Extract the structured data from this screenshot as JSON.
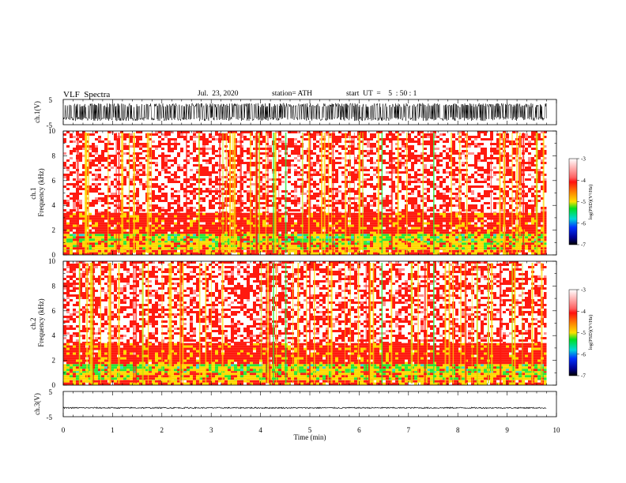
{
  "header": {
    "title": "VLF  Spectra",
    "date": "Jul.  23, 2020",
    "station": "station= ATH",
    "start": "start  UT  =    5  : 50 : 1"
  },
  "chart_data": [
    {
      "type": "line",
      "name": "ch1-waveform",
      "ylabel": "ch.1(V)",
      "ylim": [
        -5,
        5
      ],
      "yticks": [
        "5",
        "-5"
      ],
      "x_range_min": [
        0,
        9.8
      ],
      "amplitude_range_V": [
        -3.5,
        3.5
      ]
    },
    {
      "type": "heatmap",
      "name": "ch1-spectrogram",
      "ylabel": "ch.1\nFrequency  (kHz)",
      "ylim": [
        0,
        10
      ],
      "yticks": [
        "0",
        "2",
        "4",
        "6",
        "8",
        "10"
      ],
      "x_range_min": [
        0,
        9.8
      ],
      "bands_kHz": [
        {
          "from": 0,
          "to": 0.4,
          "level": "yellow-red"
        },
        {
          "from": 0.4,
          "to": 1.0,
          "level": "yellow"
        },
        {
          "from": 1.0,
          "to": 1.7,
          "level": "green-yellow"
        },
        {
          "from": 1.7,
          "to": 3.4,
          "level": "red"
        },
        {
          "from": 3.4,
          "to": 10,
          "level": "red-white"
        }
      ]
    },
    {
      "type": "heatmap",
      "name": "ch2-spectrogram",
      "ylabel": "ch.2\nFrequency  (kHz)",
      "ylim": [
        0,
        10
      ],
      "yticks": [
        "0",
        "2",
        "4",
        "6",
        "8",
        "10"
      ],
      "x_range_min": [
        0,
        9.8
      ],
      "bands_kHz": [
        {
          "from": 0,
          "to": 0.4,
          "level": "yellow-red"
        },
        {
          "from": 0.4,
          "to": 1.0,
          "level": "yellow"
        },
        {
          "from": 1.0,
          "to": 1.7,
          "level": "green-yellow"
        },
        {
          "from": 1.7,
          "to": 3.4,
          "level": "red"
        },
        {
          "from": 3.4,
          "to": 10,
          "level": "red-white"
        }
      ]
    },
    {
      "type": "line",
      "name": "ch3-waveform",
      "ylabel": "ch.3(V)",
      "ylim": [
        -5,
        5
      ],
      "yticks": [
        "5",
        "-5"
      ],
      "x_range_min": [
        0,
        9.8
      ],
      "offset_V": -1.5,
      "amplitude_V": 0.25,
      "xlabel": "Time  (min)",
      "xlim": [
        0,
        10
      ],
      "xticks": [
        "0",
        "1",
        "2",
        "3",
        "4",
        "5",
        "6",
        "7",
        "8",
        "9",
        "10"
      ]
    }
  ],
  "colorbars": [
    {
      "name": "ch1",
      "label": "log(PSD)(V²/Hz)",
      "ticks": [
        "-3",
        "-4",
        "-5",
        "-6",
        "-7"
      ]
    },
    {
      "name": "ch2",
      "label": "log(PSD)(V²/Hz)",
      "ticks": [
        "-3",
        "-4",
        "-5",
        "-6",
        "-7"
      ]
    }
  ],
  "colors": {
    "white": "#ffffff",
    "red": "#ff1a10",
    "yellow": "#ffd900",
    "green": "#27e838",
    "blue": "#2060ff",
    "navy": "#000070",
    "black": "#000000"
  }
}
